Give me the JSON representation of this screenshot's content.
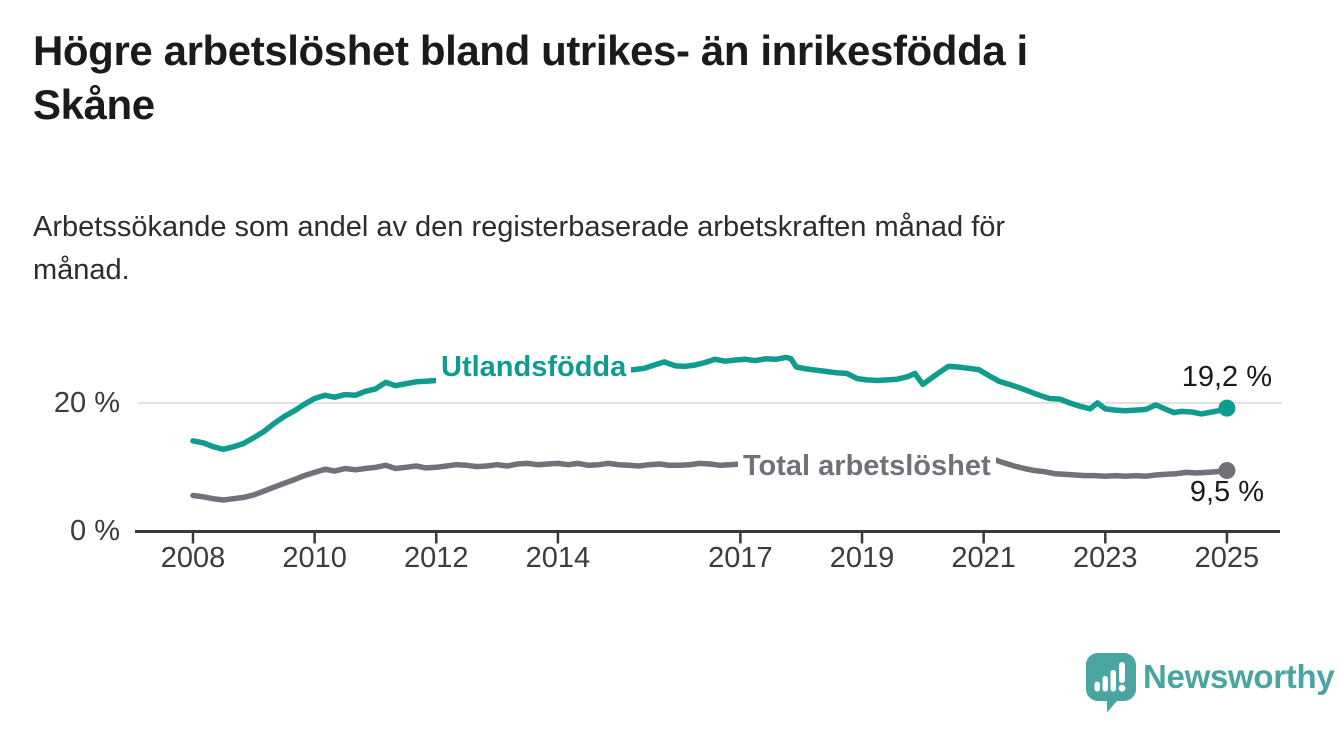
{
  "header": {
    "title_line1": "Högre arbetslöshet bland utrikes- än inrikesfödda i",
    "title_line2": "Skåne",
    "subtitle_line1": "Arbetssökande som andel av den registerbaserade arbetskraften månad för",
    "subtitle_line2": "månad."
  },
  "footer": {
    "brand": "Newsworthy",
    "brand_color": "#4aa5a0"
  },
  "chart_data": {
    "type": "line",
    "title": "Högre arbetslöshet bland utrikes- än inrikesfödda i Skåne",
    "subtitle": "Arbetssökande som andel av den registerbaserade arbetskraften månad för månad.",
    "xlabel": "",
    "ylabel": "",
    "grid": true,
    "grid_y": [
      20
    ],
    "ylim": [
      0,
      31
    ],
    "xlim": [
      2007.05,
      2025.9
    ],
    "y_ticks": [
      "20 %",
      "0 %"
    ],
    "x_ticks": [
      "2008",
      "2010",
      "2012",
      "2014",
      "2017",
      "2019",
      "2021",
      "2023",
      "2025"
    ],
    "legend_position": "inline-labels",
    "series": [
      {
        "name": "Utlandsfödda",
        "color": "#0f9b8e",
        "end_label": "19,2 %",
        "end_value": 19.2,
        "points": [
          [
            2008.0,
            14.1
          ],
          [
            2008.17,
            13.8
          ],
          [
            2008.33,
            13.2
          ],
          [
            2008.5,
            12.8
          ],
          [
            2008.67,
            13.2
          ],
          [
            2008.83,
            13.7
          ],
          [
            2009.0,
            14.6
          ],
          [
            2009.17,
            15.6
          ],
          [
            2009.33,
            16.8
          ],
          [
            2009.5,
            17.9
          ],
          [
            2009.67,
            18.8
          ],
          [
            2009.83,
            19.8
          ],
          [
            2010.0,
            20.7
          ],
          [
            2010.17,
            21.2
          ],
          [
            2010.33,
            20.9
          ],
          [
            2010.5,
            21.3
          ],
          [
            2010.67,
            21.2
          ],
          [
            2010.83,
            21.8
          ],
          [
            2011.0,
            22.2
          ],
          [
            2011.17,
            23.2
          ],
          [
            2011.33,
            22.7
          ],
          [
            2011.5,
            23.0
          ],
          [
            2011.67,
            23.3
          ],
          [
            2011.83,
            23.4
          ],
          [
            2012.0,
            23.5
          ],
          [
            2012.17,
            24.1
          ],
          [
            2012.33,
            23.8
          ],
          [
            2012.5,
            23.9
          ],
          [
            2012.67,
            24.0
          ],
          [
            2012.83,
            23.8
          ],
          [
            2013.0,
            24.0
          ],
          [
            2013.25,
            24.2
          ],
          [
            2013.5,
            24.4
          ],
          [
            2013.75,
            24.3
          ],
          [
            2014.0,
            24.5
          ],
          [
            2014.25,
            24.7
          ],
          [
            2014.5,
            24.8
          ],
          [
            2014.75,
            24.7
          ],
          [
            2015.0,
            25.0
          ],
          [
            2015.25,
            25.2
          ],
          [
            2015.42,
            25.4
          ],
          [
            2015.58,
            25.9
          ],
          [
            2015.75,
            26.4
          ],
          [
            2015.92,
            25.8
          ],
          [
            2016.08,
            25.7
          ],
          [
            2016.25,
            25.9
          ],
          [
            2016.42,
            26.3
          ],
          [
            2016.58,
            26.8
          ],
          [
            2016.75,
            26.5
          ],
          [
            2016.92,
            26.7
          ],
          [
            2017.08,
            26.8
          ],
          [
            2017.25,
            26.6
          ],
          [
            2017.42,
            26.9
          ],
          [
            2017.58,
            26.8
          ],
          [
            2017.75,
            27.1
          ],
          [
            2017.83,
            26.9
          ],
          [
            2017.92,
            25.6
          ],
          [
            2018.08,
            25.3
          ],
          [
            2018.25,
            25.1
          ],
          [
            2018.42,
            24.9
          ],
          [
            2018.58,
            24.7
          ],
          [
            2018.75,
            24.6
          ],
          [
            2018.92,
            23.8
          ],
          [
            2019.08,
            23.6
          ],
          [
            2019.25,
            23.5
          ],
          [
            2019.42,
            23.6
          ],
          [
            2019.58,
            23.7
          ],
          [
            2019.75,
            24.1
          ],
          [
            2019.87,
            24.6
          ],
          [
            2020.0,
            22.9
          ],
          [
            2020.13,
            23.8
          ],
          [
            2020.25,
            24.6
          ],
          [
            2020.42,
            25.7
          ],
          [
            2020.58,
            25.6
          ],
          [
            2020.75,
            25.4
          ],
          [
            2020.92,
            25.2
          ],
          [
            2021.08,
            24.3
          ],
          [
            2021.25,
            23.4
          ],
          [
            2021.42,
            22.9
          ],
          [
            2021.58,
            22.4
          ],
          [
            2021.75,
            21.8
          ],
          [
            2021.92,
            21.2
          ],
          [
            2022.08,
            20.7
          ],
          [
            2022.25,
            20.6
          ],
          [
            2022.42,
            20.0
          ],
          [
            2022.58,
            19.5
          ],
          [
            2022.75,
            19.1
          ],
          [
            2022.87,
            20.0
          ],
          [
            2023.0,
            19.1
          ],
          [
            2023.17,
            18.9
          ],
          [
            2023.33,
            18.8
          ],
          [
            2023.5,
            18.9
          ],
          [
            2023.67,
            19.0
          ],
          [
            2023.83,
            19.7
          ],
          [
            2024.0,
            19.0
          ],
          [
            2024.13,
            18.5
          ],
          [
            2024.25,
            18.7
          ],
          [
            2024.42,
            18.6
          ],
          [
            2024.58,
            18.3
          ],
          [
            2024.75,
            18.6
          ],
          [
            2024.87,
            18.8
          ],
          [
            2025.0,
            19.2
          ]
        ]
      },
      {
        "name": "Total arbetslöshet",
        "color": "#71717a",
        "end_label": "9,5 %",
        "end_value": 9.5,
        "points": [
          [
            2008.0,
            5.6
          ],
          [
            2008.17,
            5.4
          ],
          [
            2008.33,
            5.1
          ],
          [
            2008.5,
            4.9
          ],
          [
            2008.67,
            5.1
          ],
          [
            2008.83,
            5.3
          ],
          [
            2009.0,
            5.7
          ],
          [
            2009.17,
            6.3
          ],
          [
            2009.33,
            6.9
          ],
          [
            2009.5,
            7.5
          ],
          [
            2009.67,
            8.1
          ],
          [
            2009.83,
            8.7
          ],
          [
            2010.0,
            9.2
          ],
          [
            2010.17,
            9.7
          ],
          [
            2010.33,
            9.4
          ],
          [
            2010.5,
            9.8
          ],
          [
            2010.67,
            9.6
          ],
          [
            2010.83,
            9.8
          ],
          [
            2011.0,
            10.0
          ],
          [
            2011.17,
            10.3
          ],
          [
            2011.33,
            9.8
          ],
          [
            2011.5,
            10.0
          ],
          [
            2011.67,
            10.2
          ],
          [
            2011.83,
            9.9
          ],
          [
            2012.0,
            10.0
          ],
          [
            2012.17,
            10.2
          ],
          [
            2012.33,
            10.4
          ],
          [
            2012.5,
            10.3
          ],
          [
            2012.67,
            10.1
          ],
          [
            2012.83,
            10.2
          ],
          [
            2013.0,
            10.4
          ],
          [
            2013.17,
            10.2
          ],
          [
            2013.33,
            10.5
          ],
          [
            2013.5,
            10.6
          ],
          [
            2013.67,
            10.4
          ],
          [
            2013.83,
            10.5
          ],
          [
            2014.0,
            10.6
          ],
          [
            2014.17,
            10.4
          ],
          [
            2014.33,
            10.6
          ],
          [
            2014.5,
            10.3
          ],
          [
            2014.67,
            10.4
          ],
          [
            2014.83,
            10.6
          ],
          [
            2015.0,
            10.4
          ],
          [
            2015.17,
            10.3
          ],
          [
            2015.33,
            10.2
          ],
          [
            2015.5,
            10.4
          ],
          [
            2015.67,
            10.5
          ],
          [
            2015.83,
            10.3
          ],
          [
            2016.0,
            10.3
          ],
          [
            2016.17,
            10.4
          ],
          [
            2016.33,
            10.6
          ],
          [
            2016.5,
            10.5
          ],
          [
            2016.67,
            10.3
          ],
          [
            2016.83,
            10.4
          ],
          [
            2017.0,
            10.5
          ],
          [
            2017.25,
            10.3
          ],
          [
            2017.5,
            10.2
          ],
          [
            2017.75,
            10.0
          ],
          [
            2018.0,
            9.9
          ],
          [
            2018.25,
            9.8
          ],
          [
            2018.5,
            9.8
          ],
          [
            2018.75,
            9.9
          ],
          [
            2019.0,
            10.0
          ],
          [
            2019.25,
            10.0
          ],
          [
            2019.5,
            10.1
          ],
          [
            2019.75,
            10.2
          ],
          [
            2020.0,
            10.4
          ],
          [
            2020.25,
            11.2
          ],
          [
            2020.5,
            11.6
          ],
          [
            2020.75,
            11.8
          ],
          [
            2021.0,
            11.6
          ],
          [
            2021.17,
            11.2
          ],
          [
            2021.33,
            10.7
          ],
          [
            2021.5,
            10.2
          ],
          [
            2021.67,
            9.8
          ],
          [
            2021.83,
            9.5
          ],
          [
            2022.0,
            9.3
          ],
          [
            2022.17,
            9.0
          ],
          [
            2022.33,
            8.9
          ],
          [
            2022.5,
            8.8
          ],
          [
            2022.67,
            8.7
          ],
          [
            2022.83,
            8.7
          ],
          [
            2023.0,
            8.6
          ],
          [
            2023.17,
            8.7
          ],
          [
            2023.33,
            8.6
          ],
          [
            2023.5,
            8.7
          ],
          [
            2023.67,
            8.6
          ],
          [
            2023.83,
            8.8
          ],
          [
            2024.0,
            8.9
          ],
          [
            2024.17,
            9.0
          ],
          [
            2024.33,
            9.2
          ],
          [
            2024.5,
            9.1
          ],
          [
            2024.67,
            9.2
          ],
          [
            2024.83,
            9.3
          ],
          [
            2025.0,
            9.5
          ]
        ]
      }
    ]
  }
}
